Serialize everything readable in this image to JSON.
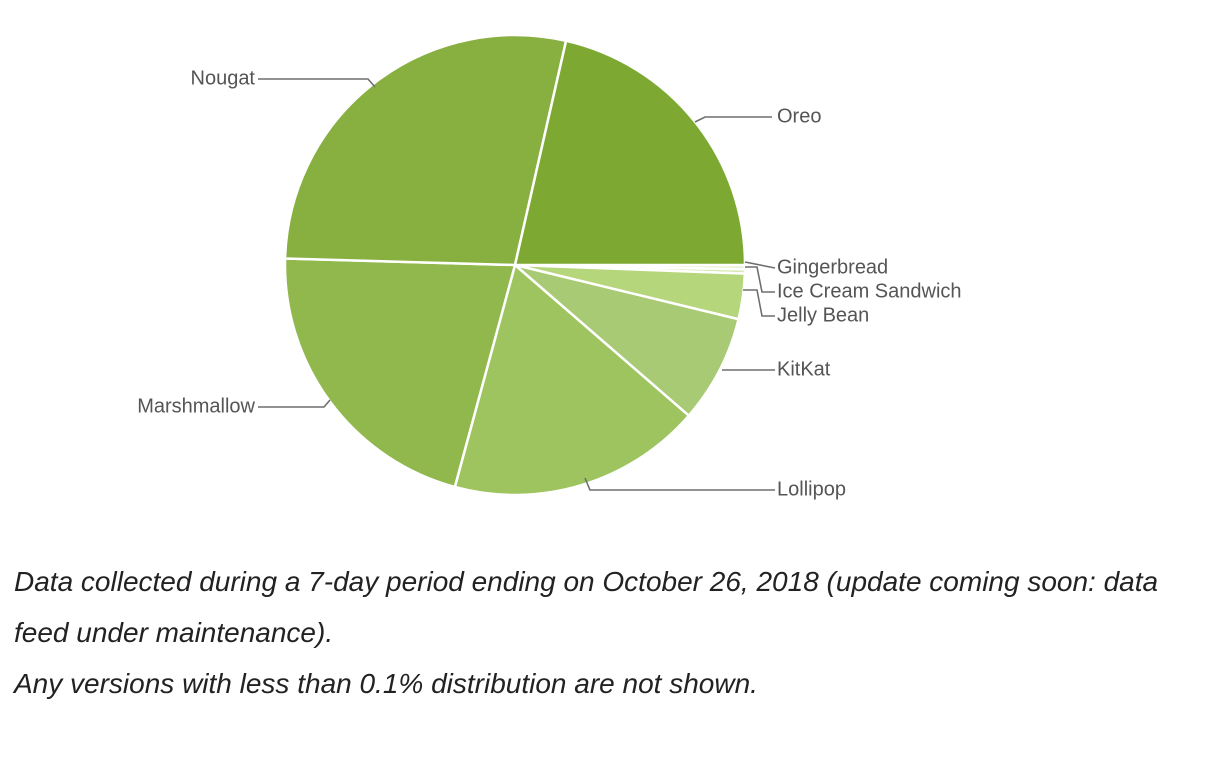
{
  "chart_data": {
    "type": "pie",
    "categories": [
      "Gingerbread",
      "Ice Cream Sandwich",
      "Jelly Bean",
      "KitKat",
      "Lollipop",
      "Marshmallow",
      "Nougat",
      "Oreo"
    ],
    "values": [
      0.3,
      0.3,
      3.2,
      7.6,
      17.9,
      21.3,
      28.2,
      21.5
    ],
    "unit": "%",
    "title": "",
    "colors": [
      "#e8f0d0",
      "#d6e8b0",
      "#b6d67c",
      "#a8ca74",
      "#9dc45e",
      "#91b84c",
      "#88b040",
      "#7da933"
    ]
  },
  "notes": {
    "line1": "Data collected during a 7-day period ending on October 26, 2018 (update coming soon: data feed under maintenance).",
    "line2": "Any versions with less than 0.1% distribution are not shown."
  }
}
